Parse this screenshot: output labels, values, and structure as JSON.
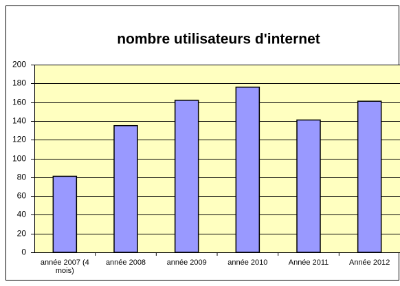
{
  "chart_data": {
    "type": "bar",
    "title": "nombre utilisateurs d'internet",
    "categories": [
      "année 2007 (4 mois)",
      "année 2008",
      "année 2009",
      "année 2010",
      "Année 2011",
      "Année 2012"
    ],
    "values": [
      81,
      135,
      162,
      176,
      141,
      161
    ],
    "color": "#9999ff",
    "ylim": [
      0,
      200
    ],
    "yticks": [
      0,
      20,
      40,
      60,
      80,
      100,
      120,
      140,
      160,
      180,
      200
    ],
    "grid": true
  }
}
